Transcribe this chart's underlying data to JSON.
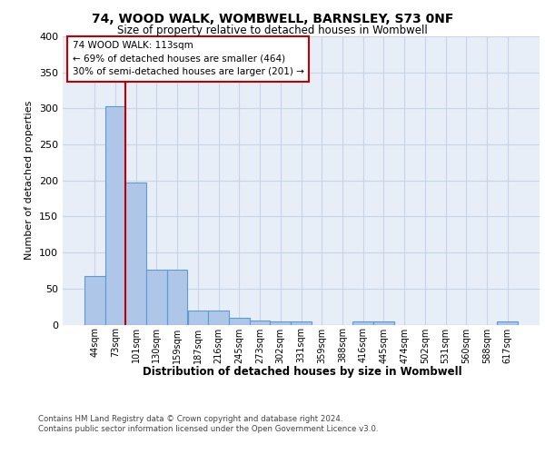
{
  "title": "74, WOOD WALK, WOMBWELL, BARNSLEY, S73 0NF",
  "subtitle": "Size of property relative to detached houses in Wombwell",
  "xlabel": "Distribution of detached houses by size in Wombwell",
  "ylabel": "Number of detached properties",
  "bar_labels": [
    "44sqm",
    "73sqm",
    "101sqm",
    "130sqm",
    "159sqm",
    "187sqm",
    "216sqm",
    "245sqm",
    "273sqm",
    "302sqm",
    "331sqm",
    "359sqm",
    "388sqm",
    "416sqm",
    "445sqm",
    "474sqm",
    "502sqm",
    "531sqm",
    "560sqm",
    "588sqm",
    "617sqm"
  ],
  "bar_values": [
    67,
    303,
    197,
    76,
    76,
    19,
    19,
    10,
    6,
    5,
    5,
    0,
    0,
    5,
    5,
    0,
    0,
    0,
    0,
    0,
    4
  ],
  "bar_color": "#aec6e8",
  "bar_edge_color": "#5b9bd5",
  "vline_color": "#c00000",
  "annotation_text": "74 WOOD WALK: 113sqm\n← 69% of detached houses are smaller (464)\n30% of semi-detached houses are larger (201) →",
  "annotation_box_color": "#ffffff",
  "annotation_box_edge": "#c00000",
  "ylim": [
    0,
    400
  ],
  "yticks": [
    0,
    50,
    100,
    150,
    200,
    250,
    300,
    350,
    400
  ],
  "background_color": "#e8eef7",
  "grid_color": "#c8d4e8",
  "footer": "Contains HM Land Registry data © Crown copyright and database right 2024.\nContains public sector information licensed under the Open Government Licence v3.0."
}
